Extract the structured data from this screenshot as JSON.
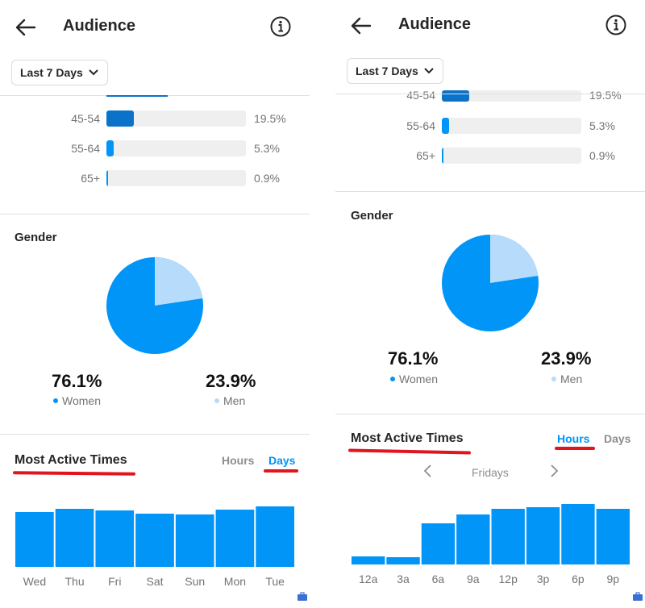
{
  "colors": {
    "accent": "#0095f6",
    "accent_dark": "#0a72c9",
    "light": "#b7dcfb",
    "annotation": "#e0161e"
  },
  "left": {
    "header": {
      "title": "Audience"
    },
    "date_range": "Last 7 Days",
    "age_rows": [
      {
        "label": "45-54",
        "value_text": "19.5%",
        "value": 19.5
      },
      {
        "label": "55-64",
        "value_text": "5.3%",
        "value": 5.3
      },
      {
        "label": "65+",
        "value_text": "0.9%",
        "value": 0.9
      }
    ],
    "gender": {
      "title": "Gender",
      "women": {
        "value": "76.1%",
        "label": "Women"
      },
      "men": {
        "value": "23.9%",
        "label": "Men"
      }
    },
    "active_times": {
      "title": "Most Active Times",
      "tab_hours": "Hours",
      "tab_days": "Days",
      "selected": "Days"
    }
  },
  "right": {
    "header": {
      "title": "Audience"
    },
    "date_range": "Last 7 Days",
    "age_rows": [
      {
        "label": "45-54",
        "value_text": "19.5%",
        "value": 19.5
      },
      {
        "label": "55-64",
        "value_text": "5.3%",
        "value": 5.3
      },
      {
        "label": "65+",
        "value_text": "0.9%",
        "value": 0.9
      }
    ],
    "gender": {
      "title": "Gender",
      "women": {
        "value": "76.1%",
        "label": "Women"
      },
      "men": {
        "value": "23.9%",
        "label": "Men"
      }
    },
    "active_times": {
      "title": "Most Active Times",
      "tab_hours": "Hours",
      "tab_days": "Days",
      "selected": "Hours",
      "day_selector": "Fridays"
    }
  },
  "chart_data": [
    {
      "type": "bar",
      "categories": [
        "Wed",
        "Thu",
        "Fri",
        "Sat",
        "Sun",
        "Mon",
        "Tue"
      ],
      "values": [
        68,
        72,
        70,
        66,
        65,
        71,
        75
      ],
      "ylim": [
        0,
        100
      ]
    },
    {
      "type": "bar",
      "categories": [
        "12a",
        "3a",
        "6a",
        "9a",
        "12p",
        "3p",
        "6p",
        "9p"
      ],
      "values": [
        10,
        9,
        51,
        62,
        69,
        71,
        75,
        69
      ],
      "ylim": [
        0,
        100
      ]
    }
  ]
}
